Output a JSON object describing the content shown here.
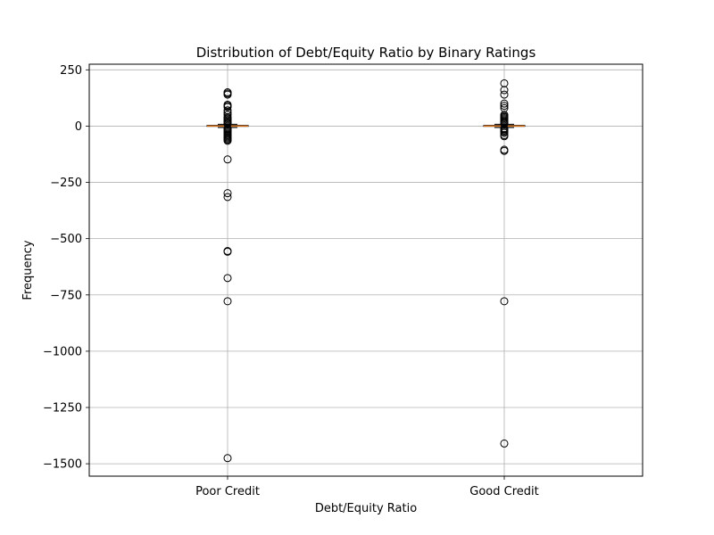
{
  "chart_data": {
    "type": "box",
    "title": "Distribution of Debt/Equity Ratio by Binary Ratings",
    "xlabel": "Debt/Equity Ratio",
    "ylabel": "Frequency",
    "ylim": [
      -1555,
      275
    ],
    "grid": true,
    "yticks": [
      250,
      0,
      -250,
      -500,
      -750,
      -1000,
      -1250,
      -1500
    ],
    "ytick_labels": [
      "250",
      "0",
      "−250",
      "−500",
      "−750",
      "−1000",
      "−1250",
      "−1500"
    ],
    "categories": [
      "Poor Credit",
      "Good Credit"
    ],
    "boxes": [
      {
        "name": "Poor Credit",
        "q1": -1,
        "median": 0.5,
        "q3": 3,
        "whisker_low": -6,
        "whisker_high": 8,
        "outliers": [
          150,
          145,
          140,
          95,
          90,
          85,
          70,
          60,
          50,
          40,
          35,
          30,
          25,
          20,
          15,
          12,
          10,
          -10,
          -12,
          -15,
          -20,
          -25,
          -30,
          -35,
          -40,
          -45,
          -50,
          -55,
          -60,
          -65,
          -148,
          -298,
          -315,
          -555,
          -558,
          -675,
          -778,
          -1475
        ]
      },
      {
        "name": "Good Credit",
        "q1": -1,
        "median": 0.5,
        "q3": 3,
        "whisker_low": -6,
        "whisker_high": 8,
        "outliers": [
          190,
          160,
          140,
          100,
          90,
          80,
          50,
          45,
          40,
          35,
          30,
          25,
          20,
          15,
          12,
          10,
          -10,
          -12,
          -15,
          -20,
          -25,
          -30,
          -40,
          -45,
          -105,
          -110,
          -778,
          -1410
        ]
      }
    ]
  }
}
